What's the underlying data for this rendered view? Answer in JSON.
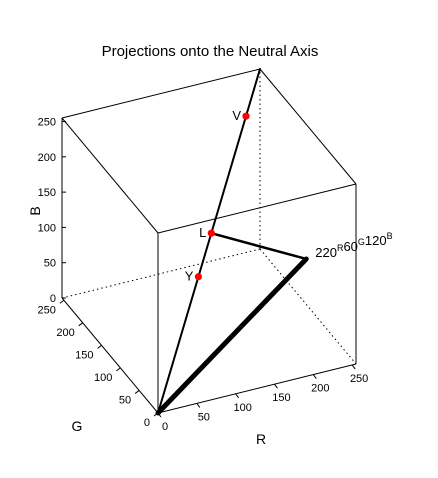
{
  "chart_data": {
    "type": "line3d",
    "title": "Projections onto the Neutral Axis",
    "xlabel": "R",
    "ylabel": "G",
    "zlabel": "B",
    "xlim": [
      0,
      255
    ],
    "ylim": [
      0,
      255
    ],
    "zlim": [
      0,
      255
    ],
    "xticks": [
      "0",
      "50",
      "100",
      "150",
      "200",
      "250"
    ],
    "yticks": [
      "0",
      "50",
      "100",
      "150",
      "200",
      "250"
    ],
    "zticks": [
      "0",
      "50",
      "100",
      "150",
      "200",
      "250"
    ],
    "series": [
      {
        "values": [
          [
            0,
            0,
            0
          ],
          [
            255,
            255,
            255
          ]
        ]
      },
      {
        "values": [
          [
            0,
            0,
            0
          ],
          [
            220,
            60,
            120
          ]
        ]
      },
      {
        "values": [
          [
            220,
            60,
            120
          ],
          [
            133.3,
            133.3,
            133.3
          ]
        ]
      }
    ],
    "points": [
      {
        "label": "V",
        "values": [
          220,
          220,
          220
        ]
      },
      {
        "label": "L",
        "values": [
          133.3,
          133.3,
          133.3
        ]
      },
      {
        "label": "Y",
        "values": [
          101,
          101,
          101
        ]
      }
    ],
    "annotation": {
      "point": [
        220,
        60,
        120
      ],
      "parts": [
        {
          "value": "220",
          "superscript": "R"
        },
        {
          "value": "60",
          "superscript": "G"
        },
        {
          "value": "120",
          "superscript": "B"
        }
      ]
    },
    "colors": {
      "points": "#ff0000",
      "lines": "#000000",
      "box": "#000000"
    },
    "grid": false
  }
}
